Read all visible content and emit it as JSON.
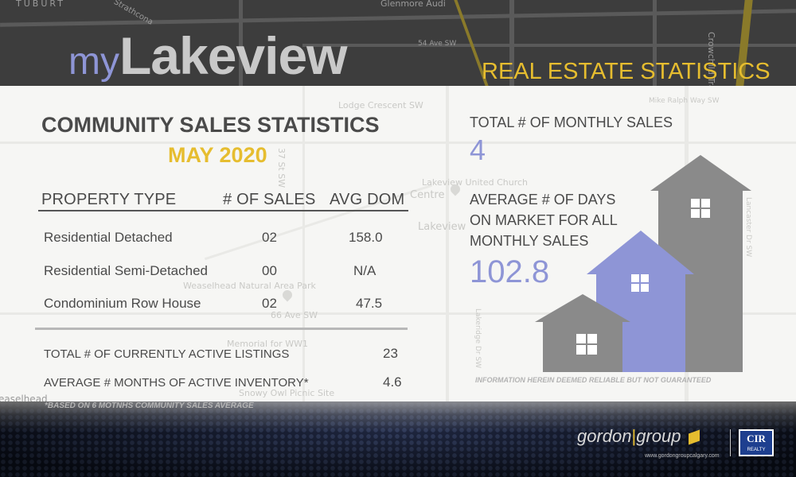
{
  "brand": {
    "prefix": "my",
    "name": "Lakeview"
  },
  "header": {
    "title": "REAL ESTATE STATISTICS"
  },
  "map_labels": {
    "top": [
      "TUBURT",
      "Glenmore Audi",
      "54 Ave SW",
      "Crowchild Trail SW",
      "Strathcona"
    ],
    "panel": [
      "Lodge Crescent SW",
      "Centre",
      "Lakeview United Church",
      "Lakeview",
      "Weaselhead Natural Area Park",
      "66 Ave SW",
      "Memorial for WW1",
      "Snowy Owl Picnic Site",
      "easelhead",
      "Mike Ralph Way SW",
      "37 St SW",
      "Lakeridge Dr SW",
      "Lancaster Dr SW"
    ]
  },
  "left": {
    "title": "COMMUNITY SALES STATISTICS",
    "period": "MAY 2020",
    "columns": {
      "type": "PROPERTY  TYPE",
      "sales": "# OF SALES",
      "dom": "AVG DOM"
    },
    "rows": [
      {
        "type": "Residential Detached",
        "sales": "02",
        "dom": "158.0"
      },
      {
        "type": "Residential Semi-Detached",
        "sales": "00",
        "dom": "N/A"
      },
      {
        "type": "Condominium Row House",
        "sales": "02",
        "dom": "47.5"
      }
    ],
    "totals": [
      {
        "label": "TOTAL # OF CURRENTLY ACTIVE LISTINGS",
        "value": "23"
      },
      {
        "label": "AVERAGE # MONTHS OF ACTIVE INVENTORY*",
        "value": "4.6"
      }
    ],
    "footnote": "*BASED ON 6 MOTNHS COMMUNITY SALES AVERAGE"
  },
  "right": {
    "monthly_sales_label": "TOTAL # OF MONTHLY SALES",
    "monthly_sales_value": "4",
    "avg_days_label": [
      "AVERAGE # OF DAYS",
      "ON MARKET FOR ALL",
      "MONTHLY SALES"
    ],
    "avg_days_value": "102.8",
    "disclaimer": "INFORMATION HEREIN DEEMED RELIABLE BUT NOT GUARANTEED"
  },
  "footer": {
    "logo_left": "gordon",
    "logo_sep": "|",
    "logo_right": "group",
    "logo_url": "www.gordongroupcalgary.com",
    "cir_name": "CIR",
    "cir_sub": "REALTY"
  },
  "colors": {
    "accent_gold": "#e6bd2f",
    "accent_periwinkle": "#8e95d6",
    "house_gray": "#8a8a8a",
    "text_dark": "#4a4a4a"
  },
  "icons": [
    "house-small-icon",
    "house-medium-icon",
    "house-tall-icon",
    "map-pin-icon"
  ]
}
